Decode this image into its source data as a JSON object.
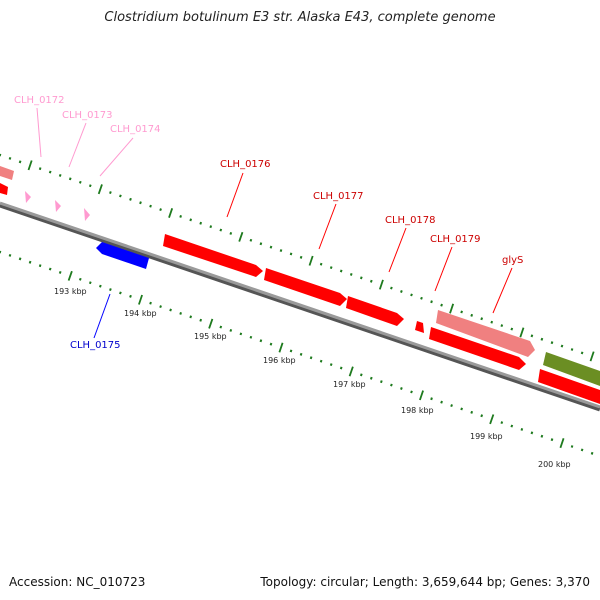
{
  "title": "Clostridium botulinum E3 str. Alaska E43, complete genome",
  "accession_text": "Accession: NC_010723",
  "topology_text": "Topology: circular; Length: 3,659,644 bp; Genes: 3,370",
  "colors": {
    "backbone": "#808080",
    "tick": "#1e7a1e",
    "gene_red": "#ff0000",
    "gene_pink": "#f08080",
    "gene_lightpink": "#ff9ad0",
    "gene_blue": "#0000ff",
    "gene_olive": "#6b8e23"
  },
  "scale_labels": [
    "193 kbp",
    "194 kbp",
    "195 kbp",
    "196 kbp",
    "197 kbp",
    "198 kbp",
    "199 kbp",
    "200 kbp"
  ],
  "genes": [
    {
      "name": "CLH_0172",
      "color": "#f08080"
    },
    {
      "name": "CLH_0173",
      "color": "#ff9ad0"
    },
    {
      "name": "CLH_0174",
      "color": "#ff9ad0"
    },
    {
      "name": "CLH_0175",
      "color": "#0000ff"
    },
    {
      "name": "CLH_0176",
      "color": "#ff0000"
    },
    {
      "name": "CLH_0177",
      "color": "#ff0000"
    },
    {
      "name": "CLH_0178",
      "color": "#ff0000"
    },
    {
      "name": "CLH_0179",
      "color": "#ff0000"
    },
    {
      "name": "glyS",
      "color": "#f08080"
    }
  ]
}
